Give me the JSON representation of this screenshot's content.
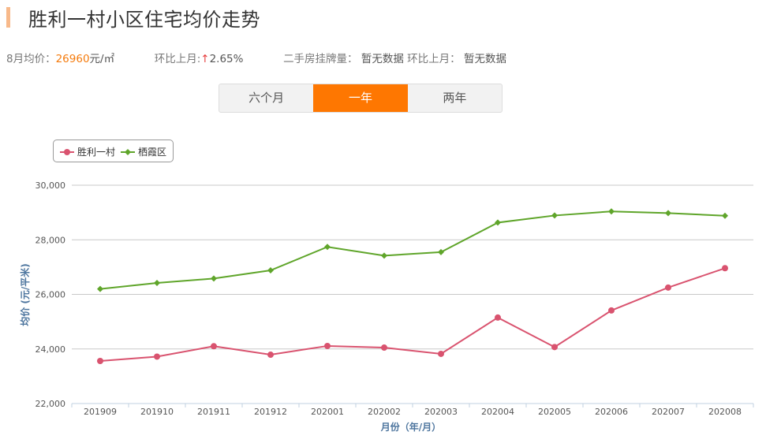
{
  "header": {
    "title": "胜利一村小区住宅均价走势",
    "accent_color": "#f8b98a"
  },
  "stats": {
    "avg_label": "8月均价：",
    "avg_value": "26960",
    "avg_unit": "元/㎡",
    "mom_label": "环比上月:",
    "mom_arrow": "↑",
    "mom_value": "2.65%",
    "listing_label": "二手房挂牌量：",
    "listing_value": "暂无数据",
    "listing_mom_label": "环比上月：",
    "listing_mom_value": "暂无数据"
  },
  "tabs": [
    {
      "label": "六个月",
      "active": false
    },
    {
      "label": "一年",
      "active": true
    },
    {
      "label": "两年",
      "active": false
    }
  ],
  "legend": [
    {
      "label": "胜利一村",
      "color": "#d9536f",
      "marker": "circle"
    },
    {
      "label": "栖霞区",
      "color": "#5fa52a",
      "marker": "diamond"
    }
  ],
  "chart_data": {
    "type": "line",
    "title": "胜利一村小区住宅均价走势",
    "xlabel": "月份（年/月）",
    "ylabel": "均价 (元/平米)",
    "ylim": [
      22000,
      30000
    ],
    "yticks": [
      "22,000",
      "24,000",
      "26,000",
      "28,000",
      "30,000"
    ],
    "grid": true,
    "legend_position": "top-left",
    "categories": [
      "201909",
      "201910",
      "201911",
      "201912",
      "202001",
      "202002",
      "202003",
      "202004",
      "202005",
      "202006",
      "202007",
      "202008"
    ],
    "series": [
      {
        "name": "胜利一村",
        "color": "#d9536f",
        "marker": "circle",
        "values": [
          23560,
          23720,
          24100,
          23790,
          24110,
          24050,
          23820,
          25150,
          24070,
          25410,
          26250,
          26960
        ]
      },
      {
        "name": "栖霞区",
        "color": "#5fa52a",
        "marker": "diamond",
        "values": [
          26200,
          26420,
          26580,
          26880,
          27740,
          27420,
          27550,
          28630,
          28890,
          29040,
          28980,
          28880
        ]
      }
    ]
  }
}
